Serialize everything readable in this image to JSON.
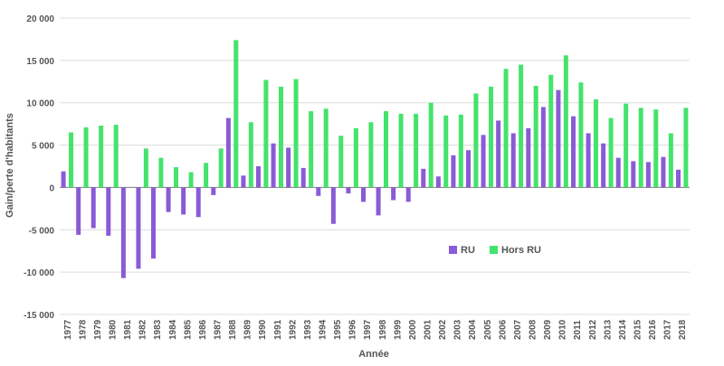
{
  "chart_data": {
    "type": "bar",
    "title": "",
    "xlabel": "Année",
    "ylabel": "Gain/perte d'habitants",
    "ylim": [
      -15000,
      20000
    ],
    "yticks": [
      20000,
      15000,
      10000,
      5000,
      0,
      -5000,
      -10000,
      -15000
    ],
    "ytick_labels": [
      "20 000",
      "15 000",
      "10 000",
      "5 000",
      "0",
      "-5 000",
      "-10 000",
      "-15 000"
    ],
    "grid": true,
    "legend_position": "right-center",
    "categories": [
      "1977",
      "1978",
      "1979",
      "1980",
      "1981",
      "1982",
      "1983",
      "1984",
      "1985",
      "1986",
      "1987",
      "1988",
      "1989",
      "1990",
      "1991",
      "1992",
      "1993",
      "1994",
      "1995",
      "1996",
      "1997",
      "1998",
      "1999",
      "2000",
      "2001",
      "2002",
      "2003",
      "2004",
      "2005",
      "2006",
      "2007",
      "2008",
      "2009",
      "2010",
      "2011",
      "2012",
      "2013",
      "2014",
      "2015",
      "2016",
      "2017",
      "2018"
    ],
    "series": [
      {
        "name": "RU",
        "color": "#8a5bd6",
        "values": [
          1900,
          -5600,
          -4800,
          -5700,
          -10700,
          -9600,
          -8400,
          -2900,
          -3200,
          -3500,
          -900,
          8200,
          1400,
          2500,
          5200,
          4700,
          2300,
          -1000,
          -4300,
          -700,
          -1700,
          -3300,
          -1500,
          -1700,
          2200,
          1300,
          3800,
          4400,
          6200,
          7900,
          6400,
          7000,
          9500,
          11500,
          8400,
          6400,
          5200,
          3500,
          3100,
          3000,
          3600,
          2100
        ]
      },
      {
        "name": "Hors RU",
        "color": "#44e36c",
        "values": [
          6500,
          7100,
          7300,
          7400,
          0,
          4600,
          3500,
          2400,
          1800,
          2900,
          4600,
          17400,
          7700,
          12700,
          11900,
          12800,
          9000,
          9300,
          6100,
          7000,
          7700,
          9000,
          8700,
          8700,
          10000,
          8500,
          8600,
          11100,
          11900,
          14000,
          14500,
          12000,
          13300,
          15600,
          12400,
          10400,
          8200,
          9900,
          9400,
          9200,
          6400,
          9400
        ]
      }
    ]
  }
}
